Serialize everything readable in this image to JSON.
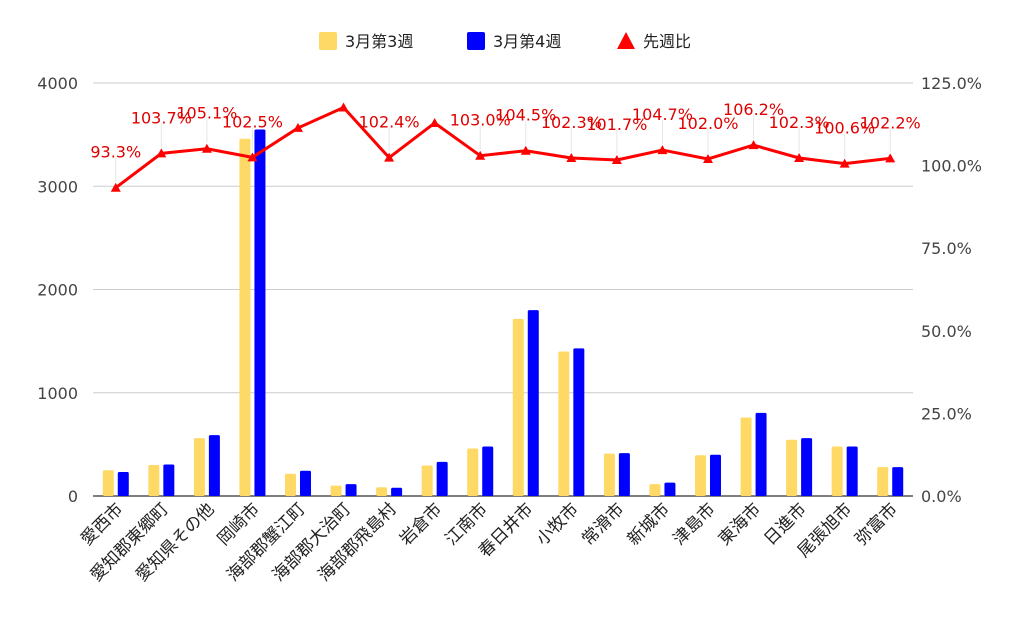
{
  "chart_data": {
    "type": "bar",
    "categories": [
      "愛西市",
      "愛知郡東郷町",
      "愛知県その他",
      "岡崎市",
      "海部郡蟹江町",
      "海部郡大治町",
      "海部郡飛島村",
      "岩倉市",
      "江南市",
      "春日井市",
      "小牧市",
      "常滑市",
      "新城市",
      "津島市",
      "東海市",
      "日進市",
      "尾張旭市",
      "弥富市"
    ],
    "series": [
      {
        "name": "3月第3週",
        "type": "bar",
        "axis": "left",
        "color": "#FFD966",
        "values": [
          250,
          300,
          560,
          3460,
          215,
          100,
          85,
          295,
          460,
          1715,
          1400,
          410,
          115,
          395,
          760,
          545,
          480,
          280
        ]
      },
      {
        "name": "3月第4週",
        "type": "bar",
        "axis": "left",
        "color": "#0000FF",
        "values": [
          233,
          305,
          590,
          3550,
          245,
          115,
          80,
          330,
          480,
          1800,
          1430,
          415,
          130,
          400,
          805,
          560,
          480,
          280
        ]
      },
      {
        "name": "先週比",
        "type": "line",
        "axis": "right",
        "color": "#FF0000",
        "values": [
          93.3,
          103.7,
          105.1,
          102.5,
          111.4,
          117.6,
          102.4,
          112.9,
          103.0,
          104.5,
          102.3,
          101.7,
          104.7,
          102.0,
          106.2,
          102.3,
          100.6,
          102.2
        ],
        "labels": [
          "93.3%",
          "103.7%",
          "105.1%",
          "102.5%",
          "",
          "",
          "102.4%",
          "",
          "103.0%",
          "104.5%",
          "102.3%",
          "101.7%",
          "104.7%",
          "102.0%",
          "106.2%",
          "102.3%",
          "100.6%",
          "102.2%"
        ]
      }
    ],
    "y_left": {
      "min": 0,
      "max": 4000,
      "ticks": [
        "0",
        "1000",
        "2000",
        "3000",
        "4000"
      ]
    },
    "y_right": {
      "min": 0,
      "max": 125,
      "ticks": [
        "0.0%",
        "25.0%",
        "50.0%",
        "75.0%",
        "100.0%",
        "125.0%"
      ]
    },
    "grid": true,
    "legend_position": "top-center"
  }
}
